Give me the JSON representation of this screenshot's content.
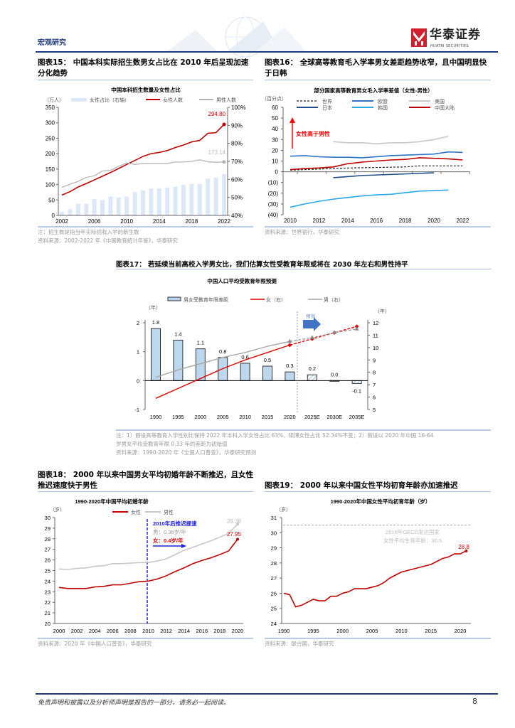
{
  "header": {
    "section": "宏观研究",
    "logo_cn": "华泰证券",
    "logo_en": "HUATAI SECURITIES"
  },
  "figures": [
    {
      "caption": "图表15：  中国本科实际招生数男女占比在 2010 年后呈现加速分化趋势",
      "notes": [
        "注：招生数是指当年实际招收入学的新生数",
        "资料来源：2002-2022 年《中国教育统计年鉴》，华泰研究"
      ]
    },
    {
      "caption": "图表16：  全球高等教育毛入学率男女差距趋势收窄，且中国明显快于日韩",
      "notes": [
        "资料来源：世界银行，华泰研究"
      ]
    },
    {
      "caption": "图表17：  若延续当前高校入学男女比，我们估算女性受教育年限或将在 2030 年左右和男性持平",
      "notes": [
        "注：1）假设高等教育入学性别比保持 2022 年本科入学女性占比 63%、硕博女性占比 52.34%不变；2）假设以 2020 年中国 16-64",
        "岁男女平均受教育年限 0.33 年的差距为初始值",
        "资料来源：1990-2020 年《全国人口普查》，华泰研究预测"
      ]
    },
    {
      "caption": "图表18：  2000 年以来中国男女平均初婚年龄不断推迟，且女性推迟速度快于男性",
      "notes": [
        "资料来源：2020 年《中国人口普查》，华泰研究"
      ]
    },
    {
      "caption": "图表19：  2000 年以来中国女性平均初育年龄亦加速推迟",
      "notes": [
        "资料来源：联合国，华泰研究"
      ]
    }
  ],
  "footer": {
    "disclaimer": "免责声明和披露以及分析师声明是报告的一部分，请务必一起阅读。",
    "page": "8"
  },
  "chart_data": [
    {
      "type": "bar+line",
      "title": "中国本科招生数量及女性占比",
      "y_unit": "（万人）",
      "x": [
        2002,
        2003,
        2004,
        2005,
        2006,
        2007,
        2008,
        2009,
        2010,
        2011,
        2012,
        2013,
        2014,
        2015,
        2016,
        2017,
        2018,
        2019,
        2020,
        2021,
        2022
      ],
      "x_ticks": [
        "2002",
        "2006",
        "2010",
        "2014",
        "2018",
        "2022"
      ],
      "ylim": [
        0,
        350
      ],
      "y_ticks": [
        "0",
        "50",
        "100",
        "150",
        "200",
        "250",
        "300",
        "350"
      ],
      "y2lim": [
        40,
        100
      ],
      "y2_ticks": [
        "40%",
        "50%",
        "60%",
        "70%",
        "80%",
        "90%",
        "100%"
      ],
      "series": [
        {
          "name": "女性占比（右轴）",
          "type": "bar",
          "axis": "right",
          "color": "#dce8f5",
          "values": [
            42,
            43.5,
            46.5,
            46.5,
            49,
            48.5,
            50.5,
            50,
            50.5,
            53,
            54,
            55,
            55,
            55.5,
            56,
            57,
            57.5,
            57.5,
            60.5,
            61,
            63
          ]
        },
        {
          "name": "女性人数",
          "type": "line",
          "axis": "left",
          "color": "#c00000",
          "values": [
            66,
            77,
            92,
            103,
            115,
            127,
            139,
            152,
            165,
            178,
            191,
            200,
            204,
            210,
            220,
            228,
            238,
            243,
            266,
            268,
            294.8
          ]
        },
        {
          "name": "男性人数",
          "type": "line",
          "axis": "left",
          "color": "#b5b5b5",
          "values": [
            91,
            101,
            110,
            123,
            128,
            144,
            146,
            159,
            170,
            165,
            168,
            168,
            168,
            168,
            173,
            173,
            175,
            180,
            174,
            172,
            173.14
          ]
        }
      ],
      "data_labels": [
        "294.80",
        "173.14"
      ],
      "grid": false,
      "legend": "top"
    },
    {
      "type": "line",
      "title": "部分国家高等教育男女毛入学率差值（女性-男性）",
      "y_unit": "（百分点）",
      "x_ticks": [
        "2010",
        "2012",
        "2014",
        "2016",
        "2018",
        "2020",
        "2022"
      ],
      "ylim": [
        -40,
        60
      ],
      "y_ticks": [
        "(40)",
        "(30)",
        "(20)",
        "(10)",
        "0",
        "10",
        "20",
        "30",
        "40",
        "50",
        "60"
      ],
      "series": [
        {
          "name": "世界",
          "color": "#222222",
          "dashed": true,
          "x": [
            2010,
            2012,
            2014,
            2016,
            2018,
            2019,
            2022
          ],
          "values": [
            1.5,
            2.5,
            3.5,
            4,
            4.5,
            5.5,
            5.5
          ]
        },
        {
          "name": "欧盟",
          "color": "#2e75c8",
          "x": [
            2010,
            2011,
            2012,
            2013,
            2014,
            2015,
            2016,
            2017,
            2018,
            2019,
            2020,
            2021,
            2022
          ],
          "values": [
            14.5,
            15,
            14,
            13.5,
            13.5,
            13,
            14,
            15,
            15.5,
            16,
            16.5,
            18.5,
            18
          ]
        },
        {
          "name": "美国",
          "color": "#c8c8c8",
          "x": [
            2013,
            2014,
            2015,
            2016,
            2017,
            2018,
            2019,
            2020,
            2021
          ],
          "values": [
            28,
            27,
            27,
            26,
            27,
            27,
            28,
            30,
            33
          ]
        },
        {
          "name": "日本",
          "color": "#1f4e8c",
          "x": [
            2013,
            2014,
            2015,
            2016,
            2017,
            2018,
            2019,
            2020
          ],
          "values": [
            -5.5,
            -4.5,
            -3.5,
            -3,
            -2.5,
            -2,
            -1.5,
            -1
          ]
        },
        {
          "name": "韩国",
          "color": "#29a8e8",
          "x": [
            2010,
            2011,
            2012,
            2013,
            2014,
            2015,
            2016,
            2017,
            2018,
            2019,
            2020,
            2021
          ],
          "values": [
            -33,
            -30,
            -27.5,
            -25.5,
            -24,
            -22.5,
            -21.5,
            -21,
            -19.5,
            -18,
            -17.5,
            -17
          ]
        },
        {
          "name": "中国大陆",
          "color": "#c00000",
          "x": [
            2010,
            2011,
            2012,
            2013,
            2014,
            2015,
            2016,
            2017,
            2018,
            2019,
            2020,
            2021,
            2022
          ],
          "values": [
            2,
            3,
            3.5,
            4.5,
            7.5,
            9,
            10,
            11,
            11.5,
            13,
            12.5,
            12,
            11
          ]
        }
      ],
      "annotation": "女性高于男性",
      "grid": false,
      "legend": "top"
    },
    {
      "type": "bar+line",
      "title": "中国人口平均受教育年限预测",
      "y_unit": "（年）",
      "y2_unit": "（年）",
      "categories": [
        "1990",
        "1995",
        "2000",
        "2005",
        "2010",
        "2015",
        "2020",
        "2025E",
        "2030E",
        "2035E"
      ],
      "forecast_from": "2025E",
      "forecast_label": "预测",
      "ylim": [
        -1,
        2
      ],
      "y_ticks": [
        "-1",
        "0",
        "1",
        "2"
      ],
      "y2lim": [
        5,
        12
      ],
      "y2_ticks": [
        "5",
        "6",
        "7",
        "8",
        "9",
        "10",
        "11",
        "12"
      ],
      "series": [
        {
          "name": "男女受教育年限差距",
          "type": "bar",
          "axis": "left",
          "color": "#bdd7ee",
          "values": [
            1.8,
            1.4,
            1.1,
            0.8,
            0.6,
            0.5,
            0.3,
            0.2,
            0.0,
            -0.1
          ],
          "labels": [
            "1.8",
            "1.4",
            "1.1",
            "0.8",
            "0.6",
            "0.5",
            "0.3",
            "0.2",
            "0.0",
            "-0.1"
          ]
        },
        {
          "name": "女（右）",
          "type": "line",
          "axis": "right",
          "color": "#e00000",
          "values": [
            5.9,
            6.7,
            7.5,
            8.3,
            9.0,
            9.6,
            10.2,
            10.7,
            11.2,
            11.7
          ]
        },
        {
          "name": "男（右）",
          "type": "line",
          "axis": "right",
          "color": "#a6a6a6",
          "values": [
            7.6,
            8.2,
            8.7,
            9.2,
            9.6,
            10.1,
            10.5,
            10.8,
            11.2,
            11.5
          ]
        }
      ],
      "grid": false,
      "legend": "top"
    },
    {
      "type": "line",
      "title": "1990-2020年中国平均初婚年龄",
      "y_unit": "（岁）",
      "x": [
        2000,
        2001,
        2002,
        2003,
        2004,
        2005,
        2006,
        2007,
        2008,
        2009,
        2010,
        2011,
        2012,
        2013,
        2014,
        2015,
        2016,
        2017,
        2018,
        2019,
        2020
      ],
      "x_ticks": [
        "2000",
        "2002",
        "2004",
        "2006",
        "2008",
        "2010",
        "2012",
        "2014",
        "2016",
        "2018",
        "2020"
      ],
      "ylim": [
        20,
        30
      ],
      "y_ticks": [
        "20",
        "21",
        "22",
        "23",
        "24",
        "25",
        "26",
        "27",
        "28",
        "29",
        "30"
      ],
      "series": [
        {
          "name": "女性",
          "color": "#c00000",
          "values": [
            23.4,
            23.3,
            23.3,
            23.3,
            23.45,
            23.5,
            23.65,
            23.65,
            23.8,
            23.95,
            24.0,
            24.2,
            24.5,
            24.9,
            25.25,
            25.65,
            25.95,
            26.2,
            26.5,
            26.85,
            27.95
          ]
        },
        {
          "name": "男性",
          "color": "#c8c8c8",
          "values": [
            25.15,
            25.1,
            25.2,
            25.25,
            25.4,
            25.45,
            25.65,
            25.65,
            25.7,
            25.75,
            25.75,
            25.9,
            26.1,
            26.5,
            26.9,
            27.2,
            27.5,
            27.8,
            28.15,
            28.5,
            29.38
          ]
        }
      ],
      "data_labels": [
        "29.38",
        "27.95"
      ],
      "annotation": {
        "title": "2010年后推迟提速",
        "male": "男：0.36岁/年",
        "female": "女：0.4岁/年"
      },
      "grid": false,
      "legend": "top"
    },
    {
      "type": "line",
      "title": "1990-2020年中国女性平均初育年龄（岁）",
      "y_unit": "（岁）",
      "x": [
        1990,
        1991,
        1992,
        1993,
        1994,
        1995,
        1996,
        1997,
        1998,
        1999,
        2000,
        2001,
        2002,
        2003,
        2004,
        2005,
        2006,
        2007,
        2008,
        2009,
        2010,
        2011,
        2012,
        2013,
        2014,
        2015,
        2016,
        2017,
        2018,
        2019,
        2020,
        2021
      ],
      "x_ticks": [
        "1990",
        "1995",
        "2000",
        "2005",
        "2010",
        "2015",
        "2020"
      ],
      "ylim": [
        24,
        31
      ],
      "y_ticks": [
        "24",
        "25",
        "26",
        "27",
        "28",
        "29",
        "30",
        "31"
      ],
      "series": [
        {
          "color": "#c00000",
          "values": [
            26.0,
            25.9,
            25.1,
            25.2,
            25.4,
            25.6,
            25.5,
            25.5,
            25.8,
            25.8,
            26.0,
            26.1,
            26.3,
            26.3,
            26.3,
            26.4,
            26.5,
            26.7,
            27.0,
            27.2,
            27.4,
            27.5,
            27.6,
            27.7,
            27.8,
            27.9,
            28.1,
            28.3,
            28.4,
            28.6,
            28.6,
            28.8
          ]
        }
      ],
      "reference": {
        "value": 30.5,
        "label_1": "2019年OECD发达国家",
        "label_2": "女性平均生育年龄：30.5",
        "color": "#bfbfbf"
      },
      "data_labels": [
        "28.8"
      ],
      "grid": false,
      "legend": "none"
    }
  ]
}
